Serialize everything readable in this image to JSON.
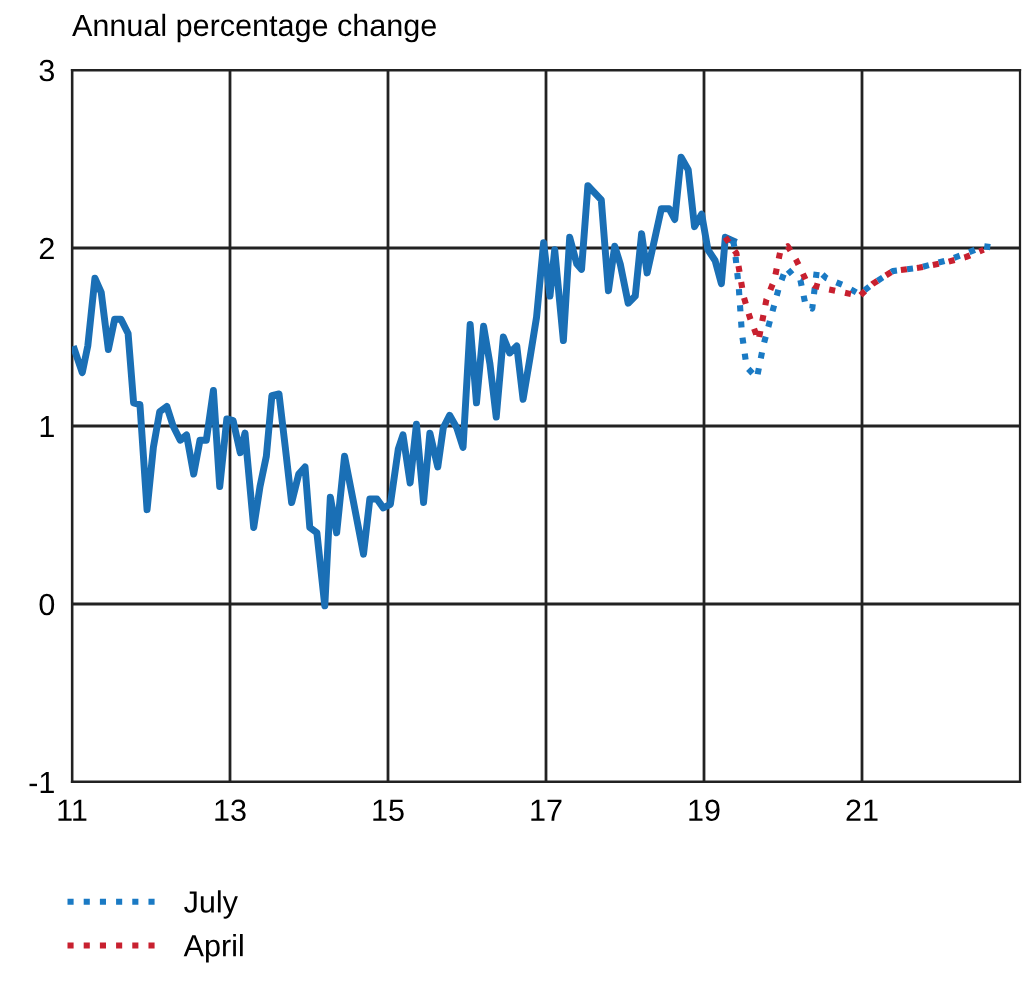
{
  "chart_data": {
    "type": "line",
    "ylabel": "Annual percentage change",
    "xlim": [
      11,
      23
    ],
    "ylim": [
      -1,
      3
    ],
    "xticks": [
      11,
      13,
      15,
      17,
      19,
      21
    ],
    "yticks": [
      -1,
      0,
      1,
      2,
      3
    ],
    "grid": true,
    "legend": "bottom",
    "series": [
      {
        "color": "#1a6fb5",
        "line_style": "solid",
        "x": [
          11.03,
          11.13,
          11.2,
          11.29,
          11.37,
          11.46,
          11.54,
          11.62,
          11.71,
          11.78,
          11.86,
          11.95,
          12.03,
          12.11,
          12.2,
          12.28,
          12.37,
          12.45,
          12.54,
          12.62,
          12.7,
          12.79,
          12.87,
          12.96,
          13.04,
          13.13,
          13.19,
          13.3,
          13.38,
          13.46,
          13.53,
          13.62,
          13.7,
          13.78,
          13.87,
          13.95,
          14.01,
          14.1,
          14.2,
          14.27,
          14.35,
          14.45,
          14.56,
          14.69,
          14.77,
          14.86,
          14.94,
          15.03,
          15.13,
          15.19,
          15.28,
          15.36,
          15.45,
          15.53,
          15.63,
          15.7,
          15.78,
          15.87,
          15.95,
          16.04,
          16.12,
          16.21,
          16.29,
          16.37,
          16.46,
          16.54,
          16.63,
          16.71,
          16.8,
          16.88,
          16.97,
          17.05,
          17.11,
          17.22,
          17.3,
          17.39,
          17.45,
          17.53,
          17.7,
          17.79,
          17.87,
          17.94,
          18.04,
          18.13,
          18.21,
          18.28,
          18.37,
          18.46,
          18.56,
          18.63,
          18.71,
          18.8,
          18.88,
          18.97,
          19.05,
          19.14,
          19.22,
          19.27,
          19.37
        ],
        "values": [
          1.43,
          1.3,
          1.45,
          1.83,
          1.75,
          1.43,
          1.6,
          1.6,
          1.52,
          1.13,
          1.12,
          0.53,
          0.88,
          1.08,
          1.11,
          1.0,
          0.92,
          0.95,
          0.73,
          0.92,
          0.92,
          1.2,
          0.66,
          1.04,
          1.03,
          0.85,
          0.96,
          0.43,
          0.66,
          0.83,
          1.17,
          1.18,
          0.88,
          0.57,
          0.73,
          0.77,
          0.43,
          0.4,
          -0.01,
          0.6,
          0.4,
          0.83,
          0.58,
          0.28,
          0.59,
          0.59,
          0.54,
          0.56,
          0.87,
          0.95,
          0.68,
          1.01,
          0.57,
          0.96,
          0.77,
          0.99,
          1.06,
          0.99,
          0.88,
          1.57,
          1.13,
          1.56,
          1.35,
          1.05,
          1.5,
          1.41,
          1.45,
          1.15,
          1.39,
          1.61,
          2.03,
          1.73,
          1.99,
          1.48,
          2.06,
          1.91,
          1.88,
          2.35,
          2.27,
          1.76,
          2.01,
          1.91,
          1.69,
          1.73,
          2.08,
          1.86,
          2.04,
          2.22,
          2.22,
          2.16,
          2.51,
          2.44,
          2.12,
          2.19,
          1.99,
          1.93,
          1.8,
          2.06,
          2.04
        ]
      },
      {
        "name": "July",
        "color": "#1a7ac4",
        "line_style": "dotted",
        "x": [
          19.37,
          19.39,
          19.44,
          19.48,
          19.54,
          19.67,
          19.75,
          19.84,
          19.95,
          20.04,
          20.14,
          20.22,
          20.29,
          20.37,
          20.43,
          20.55,
          20.77,
          20.97,
          21.14,
          21.39,
          21.73,
          22.07,
          22.32,
          22.54,
          22.71
        ],
        "values": [
          2.04,
          1.99,
          1.78,
          1.52,
          1.33,
          1.27,
          1.45,
          1.6,
          1.78,
          1.89,
          1.84,
          1.82,
          1.67,
          1.66,
          1.88,
          1.83,
          1.79,
          1.74,
          1.8,
          1.87,
          1.89,
          1.93,
          1.97,
          2.01,
          2.0
        ]
      },
      {
        "name": "April",
        "color": "#c8202f",
        "line_style": "dotted",
        "x": [
          19.27,
          19.41,
          19.5,
          19.58,
          19.69,
          19.79,
          19.89,
          19.97,
          20.06,
          20.17,
          20.29,
          20.39,
          20.55,
          20.77,
          20.97,
          21.14,
          21.39,
          21.73,
          22.07,
          22.32,
          22.54
        ],
        "values": [
          2.06,
          1.97,
          1.73,
          1.61,
          1.48,
          1.71,
          1.82,
          1.99,
          2.01,
          1.93,
          1.82,
          1.79,
          1.77,
          1.75,
          1.73,
          1.8,
          1.87,
          1.89,
          1.92,
          1.95,
          1.99
        ]
      }
    ]
  }
}
